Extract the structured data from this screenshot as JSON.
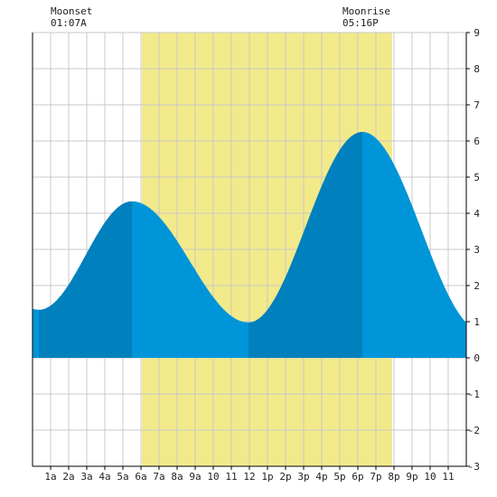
{
  "moon": {
    "moonset_label": "Moonset",
    "moonset_time": "01:07A",
    "moonrise_label": "Moonrise",
    "moonrise_time": "05:16P"
  },
  "colors": {
    "daylight": "#f2ea8a",
    "rising_tide": "#0080bc",
    "falling_tide": "#0095d9",
    "grid": "#c8c8c8",
    "axis": "#000000",
    "background": "#ffffff"
  },
  "chart_data": {
    "type": "area",
    "title": "",
    "xlabel": "",
    "ylabel": "",
    "xlim": [
      0,
      24
    ],
    "ylim": [
      -3,
      9
    ],
    "grid": true,
    "x_ticks": [
      {
        "h": 1,
        "label": "1a"
      },
      {
        "h": 2,
        "label": "2a"
      },
      {
        "h": 3,
        "label": "3a"
      },
      {
        "h": 4,
        "label": "4a"
      },
      {
        "h": 5,
        "label": "5a"
      },
      {
        "h": 6,
        "label": "6a"
      },
      {
        "h": 7,
        "label": "7a"
      },
      {
        "h": 8,
        "label": "8a"
      },
      {
        "h": 9,
        "label": "9a"
      },
      {
        "h": 10,
        "label": "10"
      },
      {
        "h": 11,
        "label": "11"
      },
      {
        "h": 12,
        "label": "12"
      },
      {
        "h": 13,
        "label": "1p"
      },
      {
        "h": 14,
        "label": "2p"
      },
      {
        "h": 15,
        "label": "3p"
      },
      {
        "h": 16,
        "label": "4p"
      },
      {
        "h": 17,
        "label": "5p"
      },
      {
        "h": 18,
        "label": "6p"
      },
      {
        "h": 19,
        "label": "7p"
      },
      {
        "h": 20,
        "label": "8p"
      },
      {
        "h": 21,
        "label": "9p"
      },
      {
        "h": 22,
        "label": "10"
      },
      {
        "h": 23,
        "label": "11"
      }
    ],
    "y_ticks": [
      {
        "v": 9,
        "label": "9"
      },
      {
        "v": 8,
        "label": "8"
      },
      {
        "v": 7,
        "label": "7"
      },
      {
        "v": 6,
        "label": "6"
      },
      {
        "v": 5,
        "label": "5"
      },
      {
        "v": 4,
        "label": "4"
      },
      {
        "v": 3,
        "label": "3"
      },
      {
        "v": 2,
        "label": "2"
      },
      {
        "v": 1,
        "label": "1"
      },
      {
        "v": 0,
        "label": "0"
      },
      {
        "v": -1,
        "label": "-1"
      },
      {
        "v": -2,
        "label": "-2"
      },
      {
        "v": -3,
        "label": "-3"
      }
    ],
    "daylight": {
      "start_h": 6.05,
      "end_h": 19.9
    },
    "moonset_h": 1.12,
    "moonrise_h": 17.27,
    "tide_extremes": [
      {
        "h": 0.35,
        "v": 1.33,
        "type": "low"
      },
      {
        "h": 5.5,
        "v": 4.33,
        "type": "high"
      },
      {
        "h": 11.95,
        "v": 0.98,
        "type": "low"
      },
      {
        "h": 18.25,
        "v": 6.25,
        "type": "high"
      },
      {
        "h": 24.85,
        "v": 0.75,
        "type": "low"
      }
    ],
    "series_start": {
      "h": 0,
      "v": 1.35
    }
  }
}
